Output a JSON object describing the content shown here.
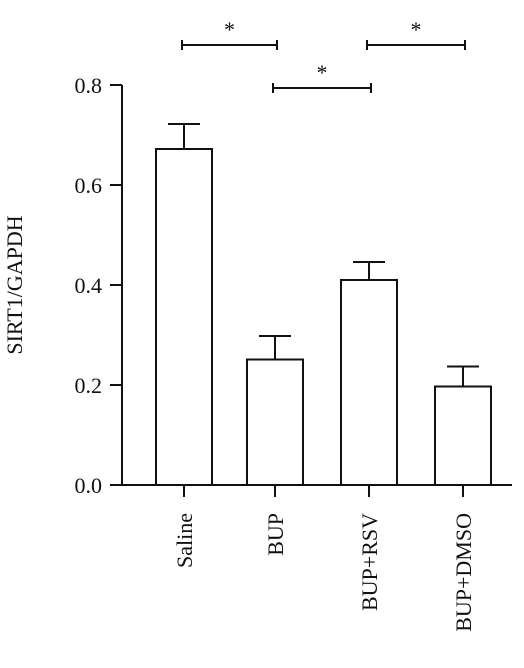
{
  "chart_data": {
    "type": "bar",
    "categories": [
      "Saline",
      "BUP",
      "BUP+RSV",
      "BUP+DMSO"
    ],
    "values": [
      0.672,
      0.251,
      0.41,
      0.197
    ],
    "errors": [
      0.05,
      0.047,
      0.036,
      0.04
    ],
    "ylabel": "SIRT1/GAPDH",
    "ylim": [
      0,
      0.8
    ],
    "yticks": [
      "0.0",
      "0.2",
      "0.4",
      "0.6",
      "0.8"
    ],
    "significance": [
      {
        "from": "Saline",
        "to": "BUP",
        "label": "*"
      },
      {
        "from": "BUP",
        "to": "BUP+RSV",
        "label": "*"
      },
      {
        "from": "BUP+RSV",
        "to": "BUP+DMSO",
        "label": "*"
      }
    ],
    "bar_fill": "#ffffff",
    "stroke_color": "#111111",
    "grid": false
  }
}
